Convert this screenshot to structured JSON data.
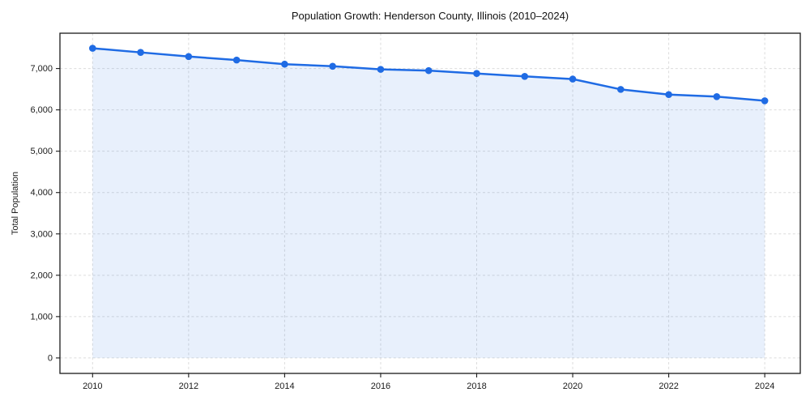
{
  "chart_data": {
    "type": "line",
    "title": "Population Growth: Henderson County, Illinois (2010–2024)",
    "xlabel": "",
    "ylabel": "Total Population",
    "x": [
      2010,
      2011,
      2012,
      2013,
      2014,
      2015,
      2016,
      2017,
      2018,
      2019,
      2020,
      2021,
      2022,
      2023,
      2024
    ],
    "series": [
      {
        "name": "Total Population",
        "values": [
          7490,
          7390,
          7290,
          7205,
          7105,
          7055,
          6980,
          6950,
          6880,
          6810,
          6745,
          6495,
          6370,
          6320,
          6220
        ]
      }
    ],
    "x_ticks": [
      2010,
      2012,
      2014,
      2016,
      2018,
      2020,
      2022,
      2024
    ],
    "x_tick_labels": [
      "2010",
      "2012",
      "2014",
      "2016",
      "2018",
      "2020",
      "2022",
      "2024"
    ],
    "y_ticks": [
      0,
      1000,
      2000,
      3000,
      4000,
      5000,
      6000,
      7000
    ],
    "y_tick_labels": [
      "0",
      "1,000",
      "2,000",
      "3,000",
      "4,000",
      "5,000",
      "6,000",
      "7,000"
    ],
    "xlim": [
      2009.32,
      2024.74
    ],
    "ylim": [
      -374,
      7854
    ],
    "grid": true,
    "legend": "none",
    "area_fill": true,
    "fill_baseline": 0,
    "marker": "circle",
    "colors": {
      "line": "#1f6be4",
      "fill": "#1f6be4",
      "fill_opacity": 0.1,
      "grid": "#dcdcdc",
      "spine": "#1a1a1a",
      "text": "#1a1a1a",
      "title": "#111111",
      "background": "#ffffff"
    }
  }
}
